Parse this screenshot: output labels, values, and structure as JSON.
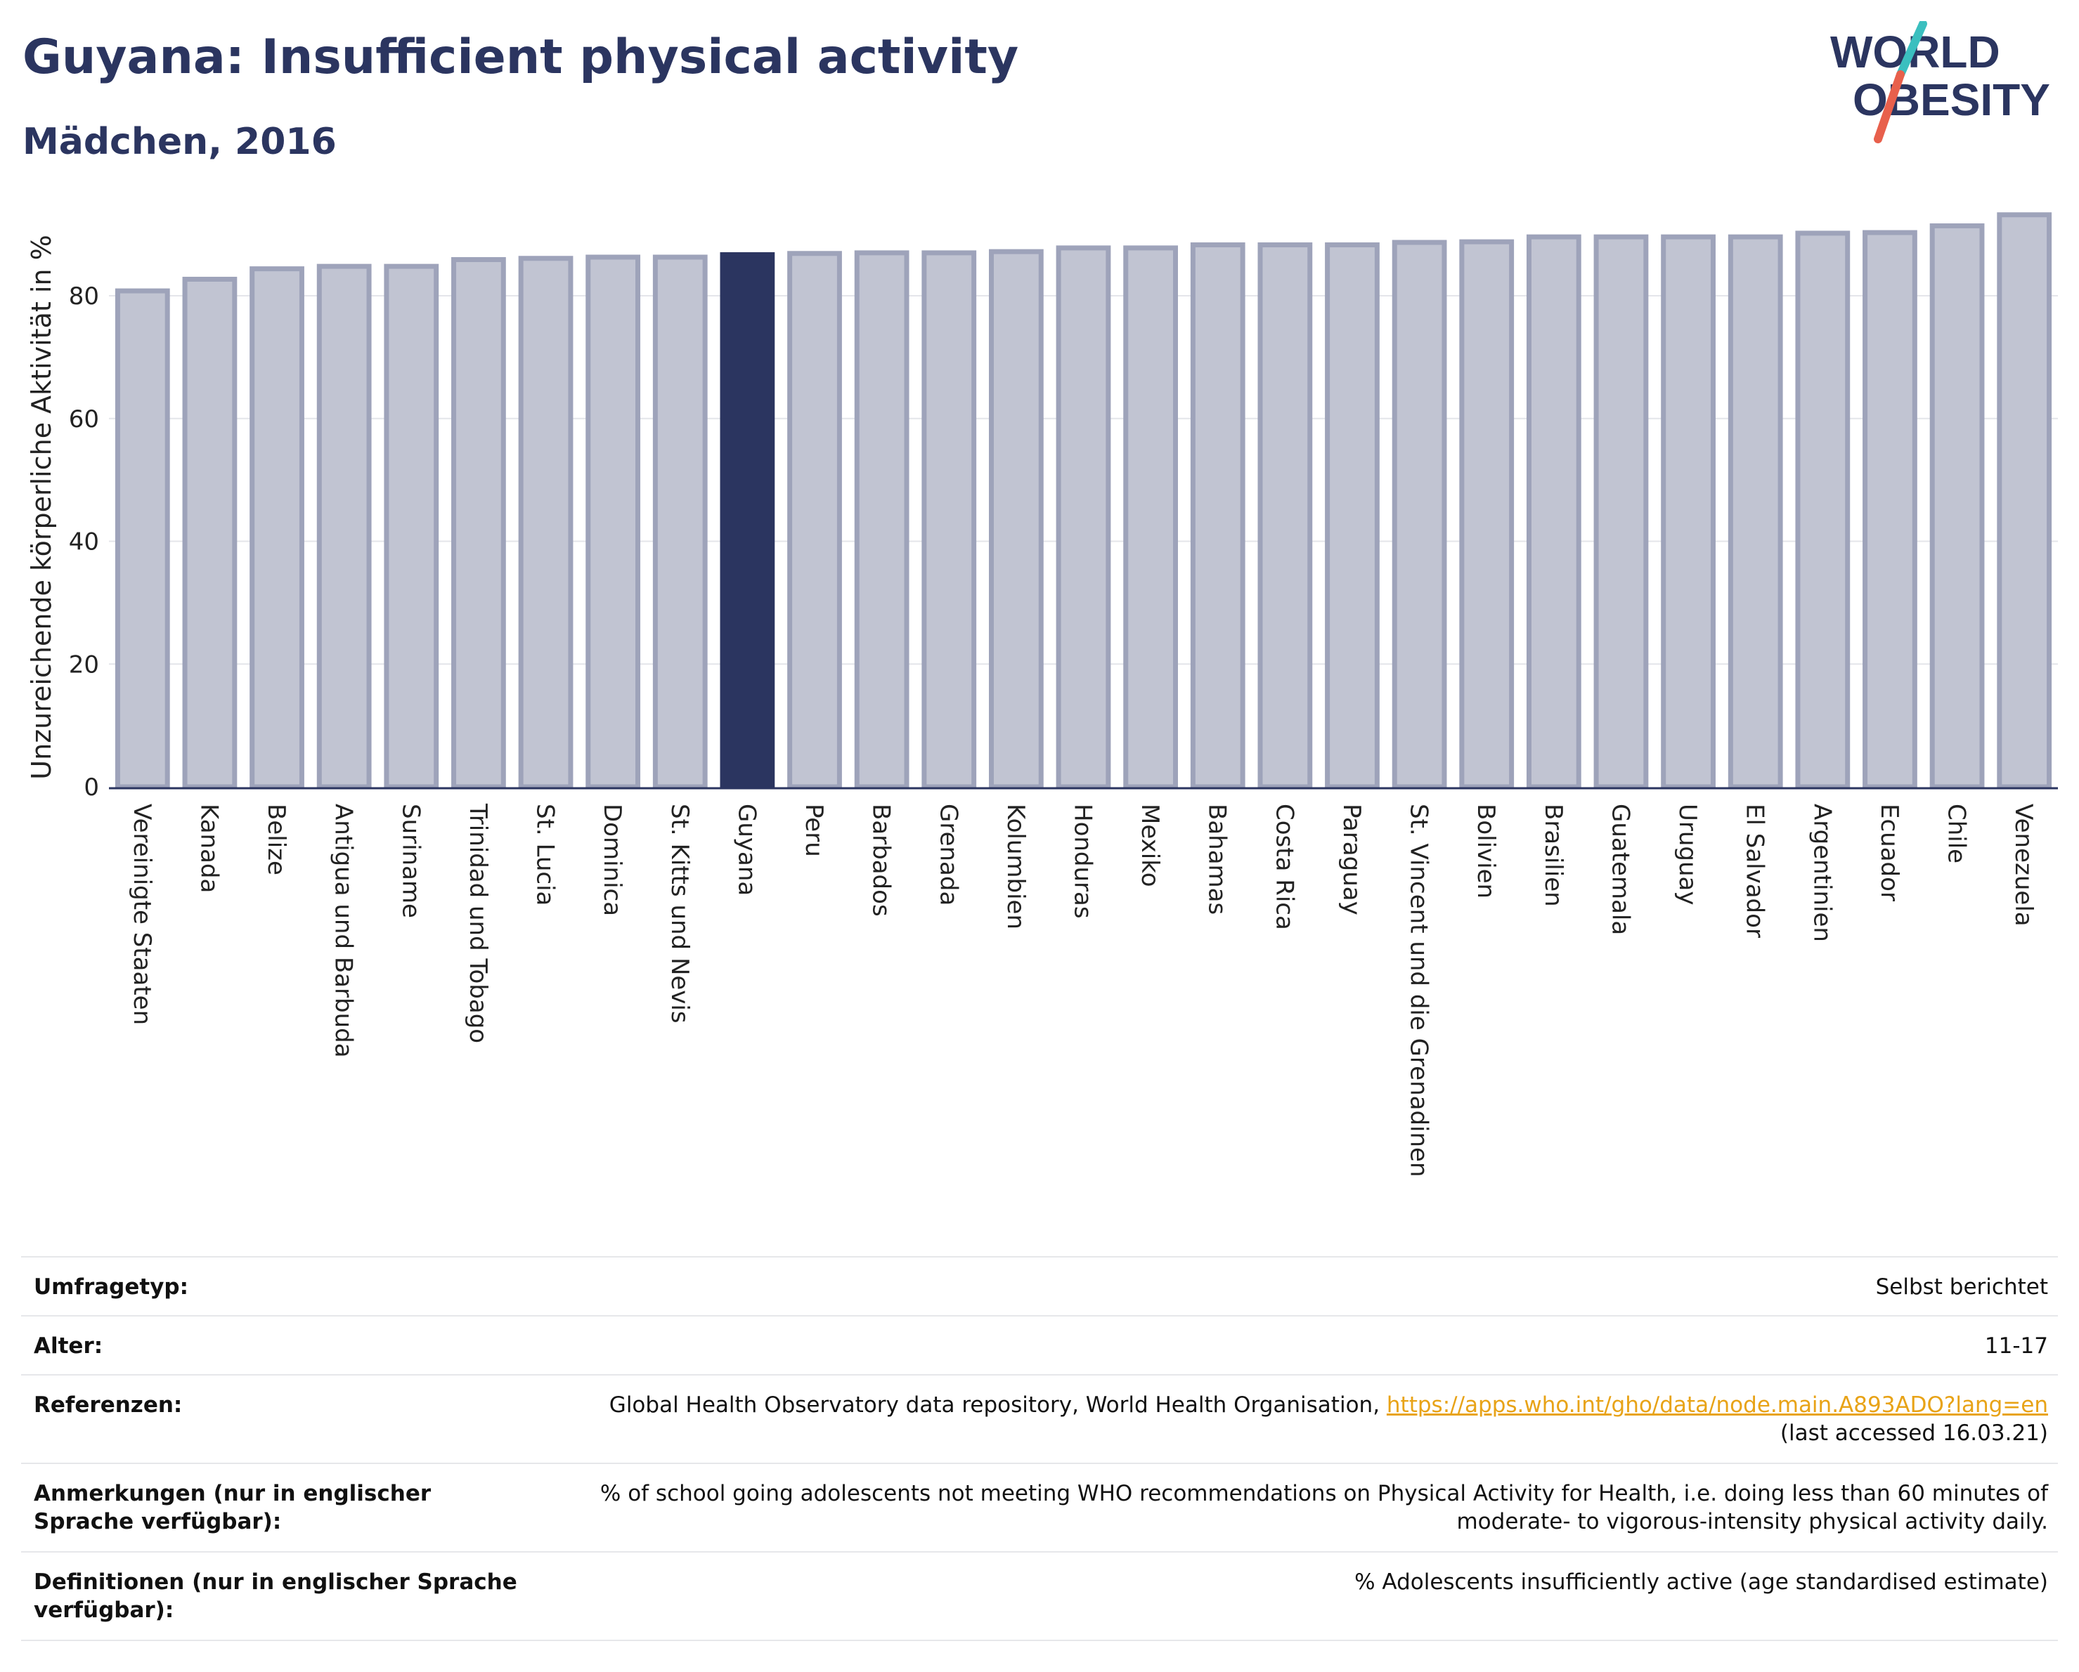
{
  "header": {
    "title": "Guyana: Insufficient physical activity",
    "subtitle": "Mädchen, 2016"
  },
  "logo": {
    "line1": "WORLD",
    "line2": "OBESITY",
    "colors": {
      "text": "#2b3560",
      "slash_top": "#3bbfbf",
      "slash_bottom": "#e8604c"
    }
  },
  "colors": {
    "bar": "#c1c4d2",
    "bar_border": "#9ea3ba",
    "highlight": "#2b3560",
    "grid": "#e4e5ea",
    "axis": "#2b3560"
  },
  "chart_data": {
    "type": "bar",
    "ylabel": "Unzureichende körperliche Aktivität in %",
    "xlabel": "",
    "ylim": [
      0,
      95
    ],
    "yticks": [
      0,
      20,
      40,
      60,
      80
    ],
    "grid": true,
    "highlight": "Guyana",
    "categories": [
      "Vereinigte Staaten",
      "Kanada",
      "Belize",
      "Antigua und Barbuda",
      "Suriname",
      "Trinidad und Tobago",
      "St. Lucia",
      "Dominica",
      "St. Kitts und Nevis",
      "Guyana",
      "Peru",
      "Barbados",
      "Grenada",
      "Kolumbien",
      "Honduras",
      "Mexiko",
      "Bahamas",
      "Costa Rica",
      "Paraguay",
      "St. Vincent und die Grenadinen",
      "Bolivien",
      "Brasilien",
      "Guatemala",
      "Uruguay",
      "El Salvador",
      "Argentinien",
      "Ecuador",
      "Chile",
      "Venezuela"
    ],
    "values": [
      80.8,
      82.7,
      84.4,
      84.8,
      84.8,
      85.9,
      86.1,
      86.3,
      86.3,
      86.7,
      86.9,
      87.0,
      87.0,
      87.2,
      87.8,
      87.8,
      88.3,
      88.3,
      88.3,
      88.7,
      88.8,
      89.6,
      89.6,
      89.6,
      89.6,
      90.2,
      90.3,
      91.4,
      93.2
    ]
  },
  "info": {
    "survey_type": {
      "label": "Umfragetyp:",
      "value": "Selbst berichtet"
    },
    "age": {
      "label": "Alter:",
      "value": "11-17"
    },
    "references": {
      "label": "Referenzen:",
      "text": "Global Health Observatory data repository, World Health Organisation, ",
      "link": "https://apps.who.int/gho/data/node.main.A893ADO?lang=en",
      "accessed": "(last accessed 16.03.21)"
    },
    "notes": {
      "label": "Anmerkungen (nur in englischer Sprache verfügbar):",
      "value": "% of school going adolescents not meeting WHO recommendations on Physical Activity for Health, i.e. doing less than 60 minutes of moderate- to vigorous-intensity physical activity daily."
    },
    "definitions": {
      "label": "Definitionen (nur in englischer Sprache verfügbar):",
      "value": "% Adolescents insufficiently active (age standardised estimate)"
    }
  }
}
